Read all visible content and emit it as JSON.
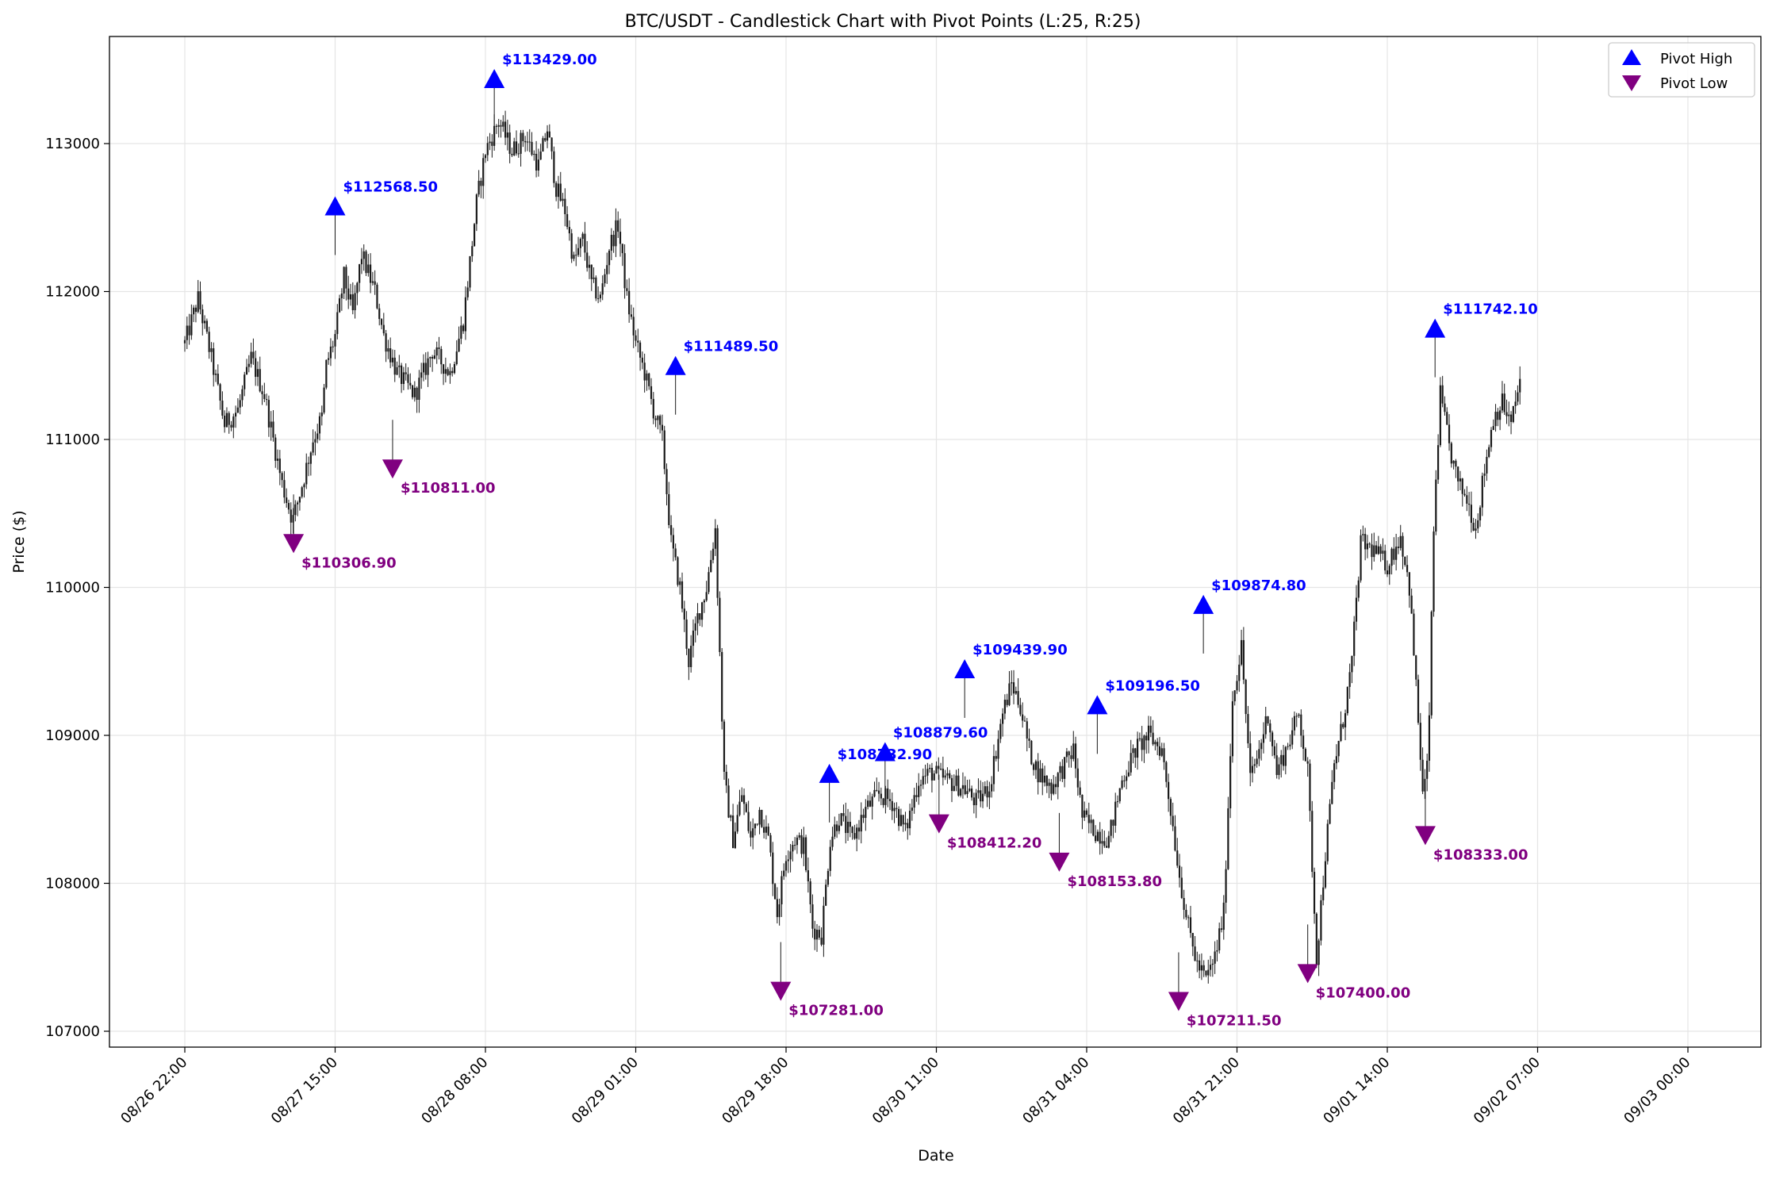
{
  "chart_data": {
    "type": "candlestick",
    "title": "BTC/USDT - Candlestick Chart with Pivot Points (L:25, R:25)",
    "xlabel": "Date",
    "ylabel": "Price ($)",
    "ylim": [
      106920,
      113730
    ],
    "yticks": [
      107000,
      108000,
      109000,
      110000,
      111000,
      112000,
      113000
    ],
    "xticks": [
      "08/26 22:00",
      "08/27 15:00",
      "08/28 08:00",
      "08/29 01:00",
      "08/29 18:00",
      "08/30 11:00",
      "08/31 04:00",
      "08/31 21:00",
      "09/01 14:00",
      "09/02 07:00",
      "09/03 00:00"
    ],
    "x_hours_per_tick": 17,
    "grid": true,
    "legend": {
      "placement": "top-right",
      "entries": [
        {
          "label": "Pivot High",
          "marker": "triangle-up",
          "color": "#0000ff"
        },
        {
          "label": "Pivot Low",
          "marker": "triangle-down",
          "color": "#800080"
        }
      ]
    },
    "colors": {
      "candle": "#1a1a1a",
      "pivot_high": "#0000ff",
      "pivot_low": "#800080",
      "grid": "#e5e5e5"
    },
    "price_path": [
      [
        0.0,
        111650
      ],
      [
        1.5,
        111950
      ],
      [
        3.0,
        111550
      ],
      [
        4.5,
        111100
      ],
      [
        6.0,
        111200
      ],
      [
        7.5,
        111550
      ],
      [
        9.0,
        111300
      ],
      [
        10.0,
        111000
      ],
      [
        11.0,
        110700
      ],
      [
        12.2,
        110450
      ],
      [
        13.5,
        110750
      ],
      [
        14.5,
        111000
      ],
      [
        15.5,
        111150
      ],
      [
        16.0,
        111500
      ],
      [
        17.0,
        111700
      ],
      [
        18.0,
        112100
      ],
      [
        19.0,
        111850
      ],
      [
        20.0,
        112250
      ],
      [
        21.5,
        112000
      ],
      [
        22.5,
        111700
      ],
      [
        24.0,
        111450
      ],
      [
        26.0,
        111300
      ],
      [
        28.0,
        111600
      ],
      [
        30.0,
        111450
      ],
      [
        31.5,
        111800
      ],
      [
        33.0,
        112600
      ],
      [
        34.0,
        112950
      ],
      [
        35.5,
        113150
      ],
      [
        37.0,
        112950
      ],
      [
        38.5,
        113050
      ],
      [
        40.0,
        112850
      ],
      [
        41.0,
        113100
      ],
      [
        42.0,
        112700
      ],
      [
        43.0,
        112550
      ],
      [
        44.0,
        112200
      ],
      [
        45.0,
        112350
      ],
      [
        46.0,
        112050
      ],
      [
        47.0,
        111950
      ],
      [
        48.0,
        112300
      ],
      [
        49.0,
        112450
      ],
      [
        50.0,
        111950
      ],
      [
        51.0,
        111650
      ],
      [
        52.0,
        111450
      ],
      [
        53.0,
        111200
      ],
      [
        54.0,
        111000
      ],
      [
        55.0,
        110300
      ],
      [
        56.0,
        110000
      ],
      [
        57.0,
        109500
      ],
      [
        58.0,
        109800
      ],
      [
        59.0,
        110000
      ],
      [
        60.0,
        110400
      ],
      [
        61.0,
        108700
      ],
      [
        62.0,
        108300
      ],
      [
        63.0,
        108600
      ],
      [
        64.0,
        108300
      ],
      [
        65.0,
        108500
      ],
      [
        66.0,
        108300
      ],
      [
        67.0,
        107800
      ],
      [
        68.0,
        108200
      ],
      [
        69.0,
        108300
      ],
      [
        70.0,
        108250
      ],
      [
        71.0,
        107700
      ],
      [
        72.0,
        107650
      ],
      [
        73.0,
        108300
      ],
      [
        74.0,
        108450
      ],
      [
        75.5,
        108300
      ],
      [
        77.0,
        108500
      ],
      [
        78.5,
        108600
      ],
      [
        80.0,
        108550
      ],
      [
        81.5,
        108350
      ],
      [
        83.0,
        108700
      ],
      [
        84.5,
        108750
      ],
      [
        86.0,
        108700
      ],
      [
        88.0,
        108650
      ],
      [
        89.5,
        108550
      ],
      [
        91.0,
        108650
      ],
      [
        92.5,
        109150
      ],
      [
        93.5,
        109350
      ],
      [
        94.5,
        109200
      ],
      [
        95.5,
        108900
      ],
      [
        96.5,
        108750
      ],
      [
        98.0,
        108650
      ],
      [
        99.5,
        108800
      ],
      [
        100.5,
        108900
      ],
      [
        101.5,
        108450
      ],
      [
        103.0,
        108350
      ],
      [
        104.5,
        108300
      ],
      [
        106.0,
        108700
      ],
      [
        107.5,
        108900
      ],
      [
        109.0,
        109000
      ],
      [
        110.5,
        108900
      ],
      [
        111.5,
        108500
      ],
      [
        112.5,
        108050
      ],
      [
        113.5,
        107700
      ],
      [
        114.5,
        107450
      ],
      [
        115.5,
        107350
      ],
      [
        116.5,
        107500
      ],
      [
        117.5,
        107800
      ],
      [
        118.5,
        109250
      ],
      [
        119.5,
        109600
      ],
      [
        120.5,
        108700
      ],
      [
        121.5,
        108900
      ],
      [
        122.5,
        109150
      ],
      [
        123.5,
        108750
      ],
      [
        124.5,
        108900
      ],
      [
        126.0,
        109150
      ],
      [
        127.0,
        108750
      ],
      [
        128.0,
        107500
      ],
      [
        129.0,
        108200
      ],
      [
        130.0,
        108800
      ],
      [
        131.0,
        109100
      ],
      [
        132.0,
        109500
      ],
      [
        133.0,
        110300
      ],
      [
        134.5,
        110250
      ],
      [
        136.0,
        110150
      ],
      [
        137.5,
        110350
      ],
      [
        138.5,
        110000
      ],
      [
        139.5,
        109100
      ],
      [
        140.0,
        108600
      ],
      [
        140.6,
        108800
      ],
      [
        141.3,
        110500
      ],
      [
        142.0,
        111300
      ],
      [
        143.0,
        110950
      ],
      [
        144.0,
        110700
      ],
      [
        145.0,
        110600
      ],
      [
        146.0,
        110400
      ],
      [
        147.0,
        110800
      ],
      [
        148.0,
        111150
      ],
      [
        149.0,
        111250
      ],
      [
        150.0,
        111100
      ],
      [
        151.0,
        111400
      ]
    ],
    "pivot_highs": [
      {
        "hours": 17.0,
        "value": 112568.5,
        "label": "$112568.50"
      },
      {
        "hours": 35.0,
        "value": 113429.0,
        "label": "$113429.00"
      },
      {
        "hours": 55.5,
        "value": 111489.5,
        "label": "$111489.50"
      },
      {
        "hours": 72.9,
        "value": 108732.9,
        "label": "$108732.90"
      },
      {
        "hours": 79.2,
        "value": 108879.6,
        "label": "$108879.60"
      },
      {
        "hours": 88.2,
        "value": 109439.9,
        "label": "$109439.90"
      },
      {
        "hours": 103.2,
        "value": 109196.5,
        "label": "$109196.50"
      },
      {
        "hours": 115.2,
        "value": 109874.8,
        "label": "$109874.80"
      },
      {
        "hours": 141.4,
        "value": 111742.1,
        "label": "$111742.10"
      }
    ],
    "pivot_lows": [
      {
        "hours": 12.3,
        "value": 110306.9,
        "label": "$110306.90"
      },
      {
        "hours": 23.5,
        "value": 110811.0,
        "label": "$110811.00"
      },
      {
        "hours": 67.4,
        "value": 107281.0,
        "label": "$107281.00"
      },
      {
        "hours": 85.3,
        "value": 108412.2,
        "label": "$108412.20"
      },
      {
        "hours": 98.9,
        "value": 108153.8,
        "label": "$108153.80"
      },
      {
        "hours": 112.4,
        "value": 107211.5,
        "label": "$107211.50"
      },
      {
        "hours": 127.0,
        "value": 107400.0,
        "label": "$107400.00"
      },
      {
        "hours": 140.3,
        "value": 108333.0,
        "label": "$108333.00"
      }
    ]
  }
}
